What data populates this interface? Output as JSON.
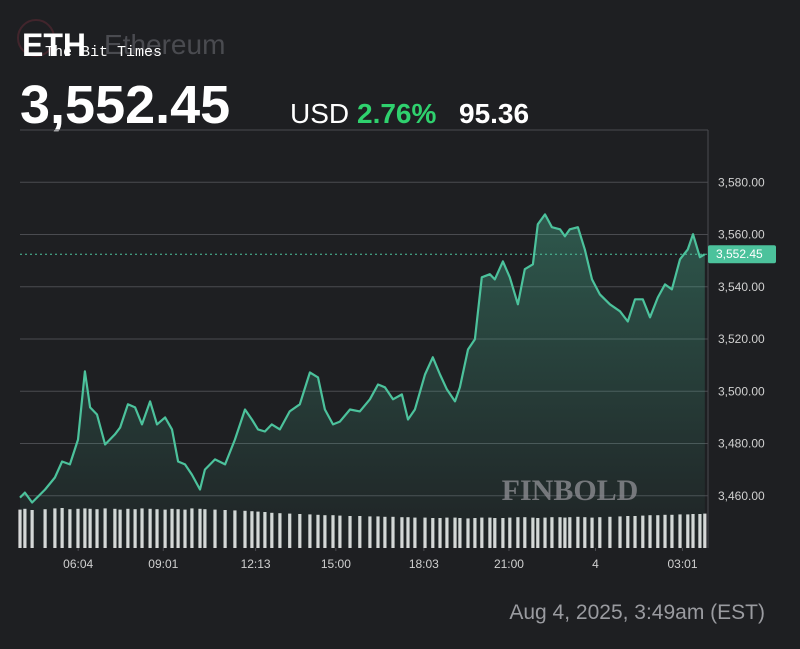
{
  "chart_data": {
    "type": "line",
    "title": "ETH",
    "subtitle": "Ethereum",
    "watermark": "The Bit Times",
    "price": "3,552.45",
    "currency": "USD",
    "change_percent": "2.76%",
    "change": "95.36",
    "brand": "FINBOLD",
    "timestamp": "Aug 4, 2025, 3:49am (EST)",
    "color": "#4cc29c",
    "volume_color": "#d9d9d9",
    "grid": true,
    "last_price": 3552.45,
    "last_price_label": "3,552.45",
    "xlim": [
      4.05,
      27.9
    ],
    "ylim": [
      3440,
      3600
    ],
    "xticks": [
      {
        "value": 6.067,
        "label": "06:04"
      },
      {
        "value": 9.017,
        "label": "09:01"
      },
      {
        "value": 12.217,
        "label": "12:13"
      },
      {
        "value": 15,
        "label": "15:00"
      },
      {
        "value": 18.05,
        "label": "18:03"
      },
      {
        "value": 21,
        "label": "21:00"
      },
      {
        "value": 24,
        "label": "4"
      },
      {
        "value": 27.017,
        "label": "03:01"
      }
    ],
    "yticks": [
      {
        "value": 3460,
        "label": "3,460.00"
      },
      {
        "value": 3480,
        "label": "3,480.00"
      },
      {
        "value": 3500,
        "label": "3,500.00"
      },
      {
        "value": 3520,
        "label": "3,520.00"
      },
      {
        "value": 3540,
        "label": "3,540.00"
      },
      {
        "value": 3560,
        "label": "3,560.00"
      },
      {
        "value": 3580,
        "label": "3,580.00"
      }
    ],
    "x": [
      4.05,
      4.22,
      4.47,
      4.92,
      5.26,
      5.51,
      5.78,
      6.06,
      6.3,
      6.48,
      6.72,
      7.0,
      7.34,
      7.52,
      7.79,
      8.04,
      8.28,
      8.56,
      8.8,
      9.08,
      9.32,
      9.53,
      9.77,
      10.01,
      10.29,
      10.46,
      10.81,
      11.16,
      11.5,
      11.85,
      12.09,
      12.3,
      12.54,
      12.78,
      13.06,
      13.4,
      13.75,
      14.1,
      14.38,
      14.62,
      14.9,
      15.14,
      15.49,
      15.83,
      16.18,
      16.46,
      16.7,
      16.98,
      17.29,
      17.5,
      17.74,
      18.09,
      18.36,
      18.61,
      18.85,
      19.13,
      19.3,
      19.58,
      19.82,
      20.06,
      20.34,
      20.51,
      20.79,
      21.03,
      21.31,
      21.55,
      21.83,
      22.0,
      22.25,
      22.49,
      22.77,
      22.94,
      23.11,
      23.39,
      23.63,
      23.88,
      24.15,
      24.5,
      24.85,
      25.12,
      25.37,
      25.64,
      25.89,
      26.16,
      26.41,
      26.65,
      26.93,
      27.2,
      27.38,
      27.62,
      27.79
    ],
    "values": [
      3459.3,
      3461.2,
      3457.4,
      3462.4,
      3467.0,
      3473.1,
      3472.0,
      3481.5,
      3507.6,
      3493.8,
      3491.1,
      3479.6,
      3483.5,
      3486.1,
      3495.0,
      3493.8,
      3487.3,
      3496.1,
      3487.3,
      3490.0,
      3485.4,
      3473.1,
      3472.0,
      3468.1,
      3462.4,
      3470.0,
      3473.9,
      3472.0,
      3481.5,
      3493.0,
      3489.2,
      3485.4,
      3484.6,
      3487.3,
      3485.4,
      3492.3,
      3495.0,
      3507.2,
      3505.3,
      3493.0,
      3487.3,
      3488.4,
      3493.0,
      3492.3,
      3496.9,
      3502.6,
      3501.5,
      3496.9,
      3498.8,
      3489.2,
      3493.0,
      3506.4,
      3513.0,
      3506.4,
      3500.7,
      3496.1,
      3501.5,
      3516.0,
      3519.9,
      3543.6,
      3544.8,
      3542.8,
      3549.7,
      3543.6,
      3533.3,
      3546.7,
      3548.6,
      3563.9,
      3567.7,
      3562.8,
      3562.0,
      3559.3,
      3562.0,
      3562.8,
      3554.3,
      3542.8,
      3537.1,
      3533.3,
      3530.6,
      3526.7,
      3535.2,
      3535.2,
      3528.3,
      3535.9,
      3540.9,
      3539.0,
      3550.5,
      3554.3,
      3560.1,
      3551.3,
      3552.45
    ],
    "volume": [
      96,
      98,
      95,
      97,
      99,
      100,
      97,
      98,
      99,
      98,
      97,
      99,
      98,
      96,
      98,
      97,
      99,
      98,
      97,
      96,
      98,
      97,
      96,
      99,
      98,
      97,
      96,
      95,
      94,
      93,
      92,
      91,
      90,
      88,
      87,
      86,
      85,
      84,
      83,
      82,
      82,
      81,
      80,
      80,
      79,
      79,
      78,
      78,
      77,
      77,
      76,
      76,
      75,
      75,
      76,
      76,
      75,
      74,
      75,
      76,
      76,
      75,
      75,
      76,
      77,
      77,
      76,
      75,
      76,
      77,
      77,
      76,
      77,
      78,
      77,
      76,
      77,
      78,
      79,
      80,
      80,
      81,
      82,
      82,
      83,
      83,
      84,
      84,
      85,
      85,
      86
    ]
  }
}
